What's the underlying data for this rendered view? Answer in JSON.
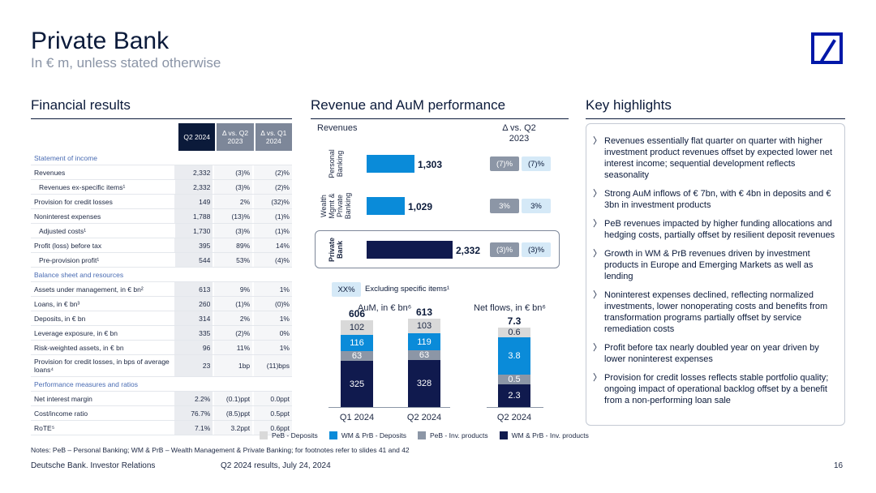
{
  "header": {
    "title": "Private Bank",
    "subtitle": "In € m, unless stated otherwise"
  },
  "sections": {
    "financial": "Financial results",
    "revenue": "Revenue and AuM performance",
    "highlights": "Key highlights"
  },
  "table": {
    "columns": [
      "Q2 2024",
      "Δ vs. Q2 2023",
      "Δ vs. Q1 2024"
    ],
    "groups": [
      {
        "title": "Statement of income",
        "rows": [
          {
            "label": "Revenues",
            "v": [
              "2,332",
              "(3)%",
              "(2)%"
            ]
          },
          {
            "label": "Revenues ex-specific items¹",
            "indent": true,
            "v": [
              "2,332",
              "(3)%",
              "(2)%"
            ]
          },
          {
            "label": "Provision for credit losses",
            "v": [
              "149",
              "2%",
              "(32)%"
            ]
          },
          {
            "label": "Noninterest expenses",
            "v": [
              "1,788",
              "(13)%",
              "(1)%"
            ]
          },
          {
            "label": "Adjusted costs¹",
            "indent": true,
            "v": [
              "1,730",
              "(3)%",
              "(1)%"
            ]
          },
          {
            "label": "Profit (loss) before tax",
            "v": [
              "395",
              "89%",
              "14%"
            ]
          },
          {
            "label": "Pre-provision profit¹",
            "indent": true,
            "v": [
              "544",
              "53%",
              "(4)%"
            ]
          }
        ]
      },
      {
        "title": "Balance sheet and resources",
        "rows": [
          {
            "label": "Assets under management, in € bn²",
            "v": [
              "613",
              "9%",
              "1%"
            ]
          },
          {
            "label": "Loans, in € bn³",
            "v": [
              "260",
              "(1)%",
              "(0)%"
            ]
          },
          {
            "label": "Deposits, in € bn",
            "v": [
              "314",
              "2%",
              "1%"
            ]
          },
          {
            "label": "Leverage exposure, in € bn",
            "v": [
              "335",
              "(2)%",
              "0%"
            ]
          },
          {
            "label": "Risk-weighted assets, in € bn",
            "v": [
              "96",
              "11%",
              "1%"
            ]
          },
          {
            "label": "Provision for credit losses, in bps of average loans⁴",
            "tall": true,
            "v": [
              "23",
              "1bp",
              "(11)bps"
            ]
          }
        ]
      },
      {
        "title": "Performance measures and ratios",
        "rows": [
          {
            "label": "Net interest margin",
            "v": [
              "2.2%",
              "(0.1)ppt",
              "0.0ppt"
            ]
          },
          {
            "label": "Cost/income ratio",
            "v": [
              "76.7%",
              "(8.5)ppt",
              "0.5ppt"
            ]
          },
          {
            "label": "RoTE⁵",
            "v": [
              "7.1%",
              "3.2ppt",
              "0.6ppt"
            ]
          }
        ]
      }
    ]
  },
  "revenue_chart": {
    "revenues_label": "Revenues",
    "delta_label": "Δ vs. Q2 2023",
    "bars": [
      {
        "label": "Personal Banking",
        "value": 1303,
        "display": "1,303",
        "d1": "(7)%",
        "d2": "(7)%",
        "color": "#0a8bd9"
      },
      {
        "label": "Wealth Mgmt & Private Banking",
        "value": 1029,
        "display": "1,029",
        "d1": "3%",
        "d2": "3%",
        "color": "#0a8bd9"
      },
      {
        "label": "Private Bank",
        "value": 2332,
        "display": "2,332",
        "d1": "(3)%",
        "d2": "(3)%",
        "color": "#101a4e"
      }
    ],
    "key_box": "XX%",
    "key_text": "Excluding specific items¹"
  },
  "chart_data": [
    {
      "type": "bar",
      "title": "AuM, in € bn⁶",
      "categories": [
        "Q1 2024",
        "Q2 2024"
      ],
      "totals": [
        "606",
        "613"
      ],
      "series": [
        {
          "name": "WM & PrB - Inv. products",
          "values": [
            325,
            328
          ]
        },
        {
          "name": "PeB - Inv. products",
          "values": [
            63,
            63
          ]
        },
        {
          "name": "WM & PrB - Deposits",
          "values": [
            116,
            119
          ]
        },
        {
          "name": "PeB - Deposits",
          "values": [
            102,
            103
          ]
        }
      ]
    },
    {
      "type": "bar",
      "title": "Net flows, in € bn⁶",
      "categories": [
        "Q2 2024"
      ],
      "totals": [
        "7.3"
      ],
      "series": [
        {
          "name": "WM & PrB - Inv. products",
          "values": [
            2.3
          ]
        },
        {
          "name": "PeB - Inv. products",
          "values": [
            0.5
          ]
        },
        {
          "name": "WM & PrB - Deposits",
          "values": [
            3.8
          ]
        },
        {
          "name": "PeB - Deposits",
          "values": [
            0.6
          ]
        }
      ]
    }
  ],
  "legend": [
    {
      "name": "PeB - Deposits",
      "color": "#d9d9d9"
    },
    {
      "name": "WM & PrB - Deposits",
      "color": "#0a8bd9"
    },
    {
      "name": "PeB - Inv. products",
      "color": "#8c96a6"
    },
    {
      "name": "WM & PrB - Inv. products",
      "color": "#101a4e"
    }
  ],
  "highlights": [
    "Revenues essentially flat quarter on quarter with higher investment product revenues offset by expected lower net interest income; sequential development reflects seasonality",
    "Strong AuM inflows of € 7bn, with € 4bn in deposits and € 3bn in investment products",
    "PeB revenues impacted by higher funding allocations and hedging costs, partially offset by resilient deposit revenues",
    "Growth in WM & PrB revenues driven by investment products in Europe and Emerging Markets as well as lending",
    "Noninterest expenses declined, reflecting normalized investments, lower nonoperating costs and benefits from transformation programs partially offset by service remediation costs",
    "Profit before tax nearly doubled year on year driven by lower noninterest expenses",
    "Provision for credit losses reflects stable portfolio quality; ongoing impact of operational backlog offset by a benefit from a non-performing loan sale"
  ],
  "highlight_bullet": "〉",
  "notes": "Notes: PeB – Personal Banking; WM & PrB – Wealth Management & Private Banking; for footnotes refer to slides 41 and 42",
  "footer": {
    "company": "Deutsche Bank. Investor Relations",
    "event": "Q2 2024 results, July 24, 2024",
    "page": "16"
  }
}
